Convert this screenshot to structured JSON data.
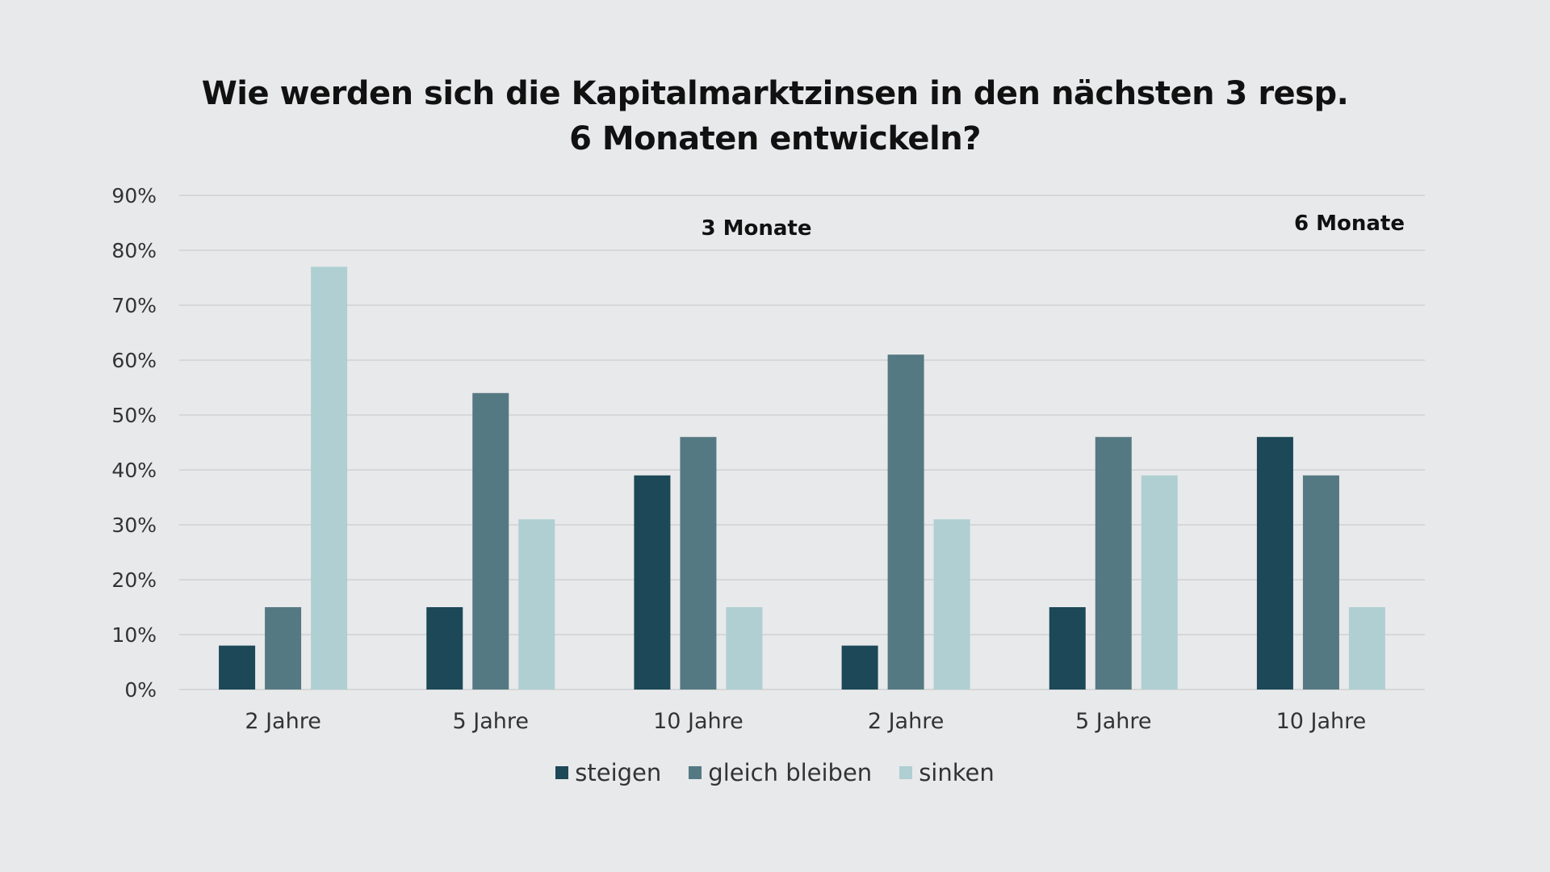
{
  "chart_data": {
    "type": "bar",
    "title": [
      "Wie werden sich die Kapitalmarktzinsen in den nächsten 3 resp.",
      "6 Monaten entwickeln?"
    ],
    "xlabel": "",
    "ylabel": "",
    "ylim": [
      0,
      90
    ],
    "yticks": [
      0,
      10,
      20,
      30,
      40,
      50,
      60,
      70,
      80,
      90
    ],
    "ytick_labels": [
      "0%",
      "10%",
      "20%",
      "30%",
      "40%",
      "50%",
      "60%",
      "70%",
      "80%",
      "90%"
    ],
    "grid": true,
    "categories": [
      "2 Jahre",
      "5 Jahre",
      "10 Jahre",
      "2 Jahre",
      "5 Jahre",
      "10 Jahre"
    ],
    "series": [
      {
        "name": "steigen",
        "color": "#1c4857",
        "values": [
          8,
          15,
          39,
          8,
          15,
          46
        ]
      },
      {
        "name": "gleich bleiben",
        "color": "#557982",
        "values": [
          15,
          54,
          46,
          61,
          46,
          39
        ]
      },
      {
        "name": "sinken",
        "color": "#afcfd2",
        "values": [
          77,
          31,
          15,
          31,
          39,
          15
        ]
      }
    ],
    "annotations": [
      {
        "text": "3 Monate",
        "applies_to": [
          "2 Jahre",
          "5 Jahre",
          "10 Jahre"
        ],
        "position": "top-center"
      },
      {
        "text": "6 Monate",
        "applies_to": [
          "2 Jahre",
          "5 Jahre",
          "10 Jahre"
        ],
        "position": "top-right"
      }
    ],
    "legend": {
      "placement": "bottom",
      "entries": [
        "steigen",
        "gleich bleiben",
        "sinken"
      ]
    }
  }
}
